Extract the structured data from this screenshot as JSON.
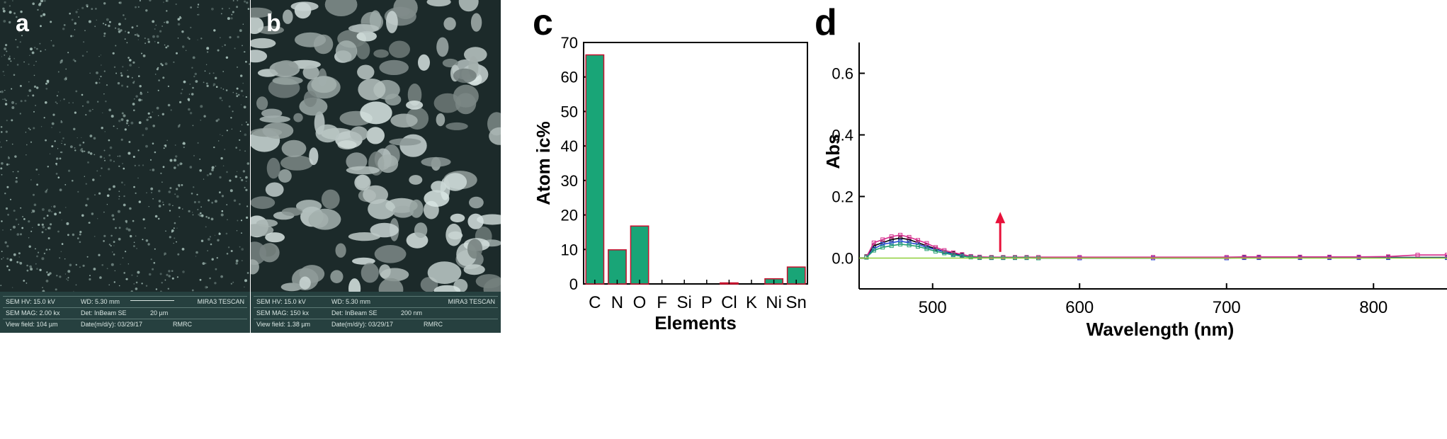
{
  "panels": {
    "a": {
      "letter": "a",
      "info": {
        "hv": "SEM HV: 15.0 kV",
        "wd": "WD: 5.30 mm",
        "brand": "MIRA3 TESCAN",
        "mag": "SEM MAG: 2.00 kx",
        "det": "Det: InBeam SE",
        "scale": "20 µm",
        "view": "View field: 104 µm",
        "date": "Date(m/d/y): 03/29/17",
        "lab": "RMRC"
      }
    },
    "b": {
      "letter": "b",
      "info": {
        "hv": "SEM HV: 15.0 kV",
        "wd": "WD: 5.30 mm",
        "brand": "MIRA3 TESCAN",
        "mag": "SEM MAG: 150 kx",
        "det": "Det: InBeam SE",
        "scale": "200 nm",
        "view": "View field: 1.38 µm",
        "date": "Date(m/d/y): 03/29/17",
        "lab": "RMRC"
      }
    },
    "c": {
      "letter": "c"
    },
    "d": {
      "letter": "d"
    }
  },
  "colors": {
    "bar_fill": "#19a577",
    "bar_stroke": "#c8102e",
    "arrow": "#e8113a",
    "baseline": "#8fcf3b",
    "sem_bg": "#1c2a2a",
    "sem_bar": "#26403f"
  },
  "chart_data": [
    {
      "type": "bar",
      "categories": [
        "C",
        "N",
        "O",
        "F",
        "Si",
        "P",
        "Cl",
        "K",
        "Ni",
        "Sn"
      ],
      "values": [
        66.4,
        9.9,
        16.8,
        0,
        0,
        0,
        0.3,
        0,
        1.5,
        4.9
      ],
      "xlabel": "Elements",
      "ylabel": "Atom ic%",
      "ylim": [
        0,
        70
      ],
      "yticks": [
        "0",
        "10",
        "20",
        "30",
        "40",
        "50",
        "60",
        "70"
      ],
      "grid": false
    },
    {
      "type": "line",
      "xlabel": "Wavelength (nm)",
      "ylabel": "Abs",
      "xlim": [
        450,
        850
      ],
      "ylim": [
        -0.1,
        0.7
      ],
      "xticks": [
        "500",
        "600",
        "700",
        "800"
      ],
      "yticks": [
        "0.0",
        "0.2",
        "0.4",
        "0.6"
      ],
      "grid": false,
      "series": [
        {
          "color": "#000000",
          "x": [
            455,
            460,
            466,
            472,
            478,
            484,
            490,
            496,
            502,
            508,
            514,
            520,
            526,
            532,
            540,
            548,
            556,
            564,
            572,
            600,
            650,
            700,
            712,
            722,
            750,
            770,
            790,
            810,
            850
          ],
          "y": [
            0.005,
            0.04,
            0.05,
            0.06,
            0.065,
            0.06,
            0.05,
            0.04,
            0.03,
            0.02,
            0.015,
            0.01,
            0.005,
            0.003,
            0.002,
            0.002,
            0.002,
            0.002,
            0.0,
            0.0,
            0.0,
            0.0,
            0.002,
            0.002,
            0.002,
            0.002,
            0.002,
            0.002,
            0.002
          ]
        },
        {
          "color": "#2b4fd6",
          "x": [
            455,
            460,
            466,
            472,
            478,
            484,
            490,
            496,
            502,
            508,
            514,
            520,
            526,
            532,
            540,
            548,
            556,
            564,
            572,
            600,
            650,
            700,
            712,
            722,
            750,
            770,
            790,
            810,
            850
          ],
          "y": [
            0.003,
            0.03,
            0.045,
            0.05,
            0.055,
            0.05,
            0.045,
            0.035,
            0.028,
            0.02,
            0.012,
            0.008,
            0.004,
            0.002,
            0.001,
            0.001,
            0.001,
            0.001,
            0.0,
            0.0,
            0.0,
            0.0,
            0.001,
            0.001,
            0.001,
            0.001,
            0.001,
            0.001,
            0.001
          ]
        },
        {
          "color": "#d62b8c",
          "x": [
            455,
            460,
            466,
            472,
            478,
            484,
            490,
            496,
            502,
            508,
            514,
            520,
            526,
            532,
            540,
            548,
            556,
            564,
            572,
            600,
            650,
            700,
            712,
            722,
            750,
            770,
            790,
            810,
            830,
            850
          ],
          "y": [
            0.004,
            0.05,
            0.06,
            0.07,
            0.075,
            0.068,
            0.058,
            0.048,
            0.035,
            0.025,
            0.018,
            0.012,
            0.006,
            0.004,
            0.003,
            0.003,
            0.003,
            0.003,
            0.003,
            0.003,
            0.003,
            0.003,
            0.004,
            0.004,
            0.004,
            0.004,
            0.004,
            0.005,
            0.01,
            0.01
          ]
        },
        {
          "color": "#23a070",
          "x": [
            455,
            460,
            466,
            472,
            478,
            484,
            490,
            496,
            502,
            508,
            514,
            520,
            526,
            532,
            540,
            548,
            556,
            564,
            572
          ],
          "y": [
            0.002,
            0.025,
            0.035,
            0.04,
            0.045,
            0.042,
            0.038,
            0.03,
            0.022,
            0.016,
            0.01,
            0.006,
            0.003,
            0.001,
            0.001,
            0.001,
            0.001,
            0.001,
            0.0
          ]
        },
        {
          "color": "#8fcf3b",
          "x": [
            450,
            850
          ],
          "y": [
            0.0,
            0.0
          ]
        }
      ],
      "annotations": [
        {
          "type": "arrow",
          "direction": "up",
          "x": 546,
          "y_from": 0.02,
          "y_to": 0.15
        }
      ]
    }
  ]
}
